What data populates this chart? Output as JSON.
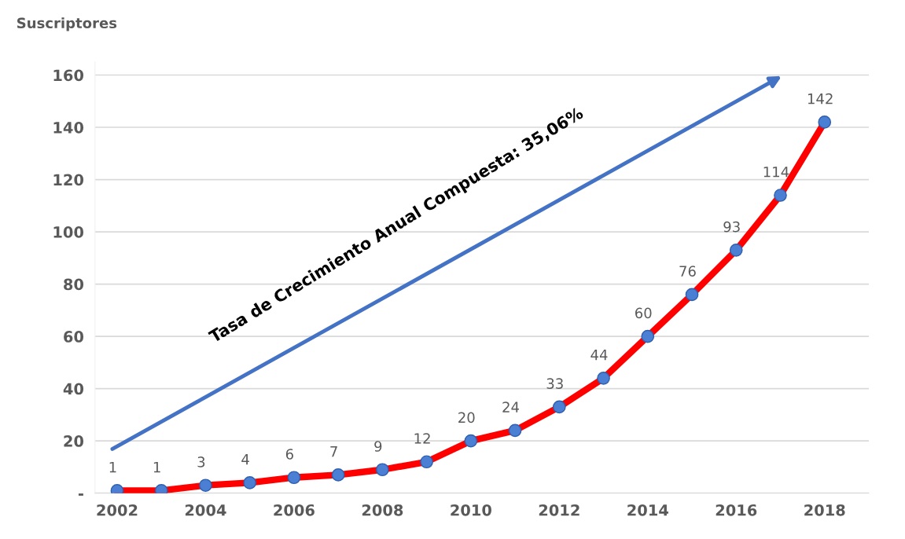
{
  "chart_data": {
    "type": "line",
    "ylabel": "Suscriptores",
    "x": [
      2002,
      2003,
      2004,
      2005,
      2006,
      2007,
      2008,
      2009,
      2010,
      2011,
      2012,
      2013,
      2014,
      2015,
      2016,
      2017,
      2018
    ],
    "series": [
      {
        "color": "#ff0000",
        "values": [
          1,
          1,
          3,
          4,
          6,
          7,
          9,
          12,
          20,
          24,
          33,
          44,
          60,
          76,
          93,
          114,
          142
        ]
      }
    ],
    "marker": "circle",
    "data_labels": true,
    "grid": "y",
    "xlim": [
      2001.5,
      2019
    ],
    "xticks": [
      2002,
      2004,
      2006,
      2008,
      2010,
      2012,
      2014,
      2016,
      2018
    ],
    "ylim": [
      0,
      165
    ],
    "yticks": [
      {
        "value": 0,
        "label": "-"
      },
      20,
      40,
      60,
      80,
      100,
      120,
      140,
      160
    ],
    "annotations": [
      "Tasa de Crecimiento Anual Compuesta: 35,06%"
    ]
  }
}
